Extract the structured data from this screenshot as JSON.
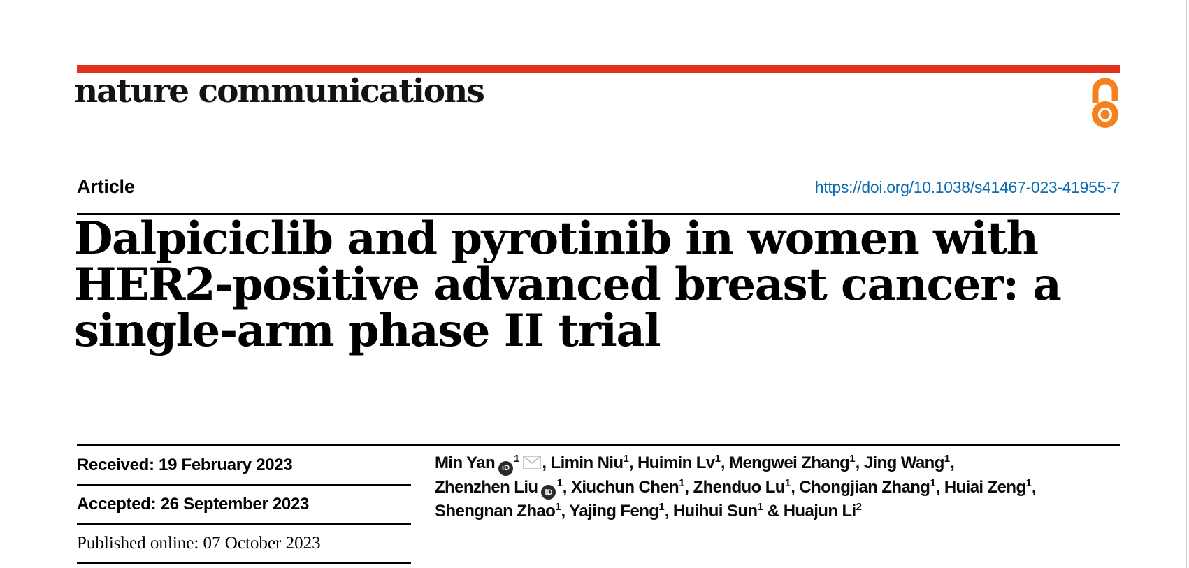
{
  "journal": {
    "name": "nature communications"
  },
  "colors": {
    "masthead_red": "#e0301e",
    "open_access_orange": "#f5821f",
    "doi_blue": "#0f6cb0",
    "rule_black": "#000000",
    "page_edge_gray": "#cccccc",
    "envelope_gray": "#c4c4c4",
    "orcid_badge_dark": "#2a2a2a"
  },
  "icons": {
    "open_access": "open-access-padlock-icon",
    "orcid": "orcid-id-icon",
    "orcid_text": "iD",
    "email": "envelope-icon"
  },
  "article": {
    "type_label": "Article",
    "doi_url": "https://doi.org/10.1038/s41467-023-41955-7",
    "title": "Dalpiciclib and pyrotinib in women with HER2-positive advanced breast cancer: a single-arm phase II trial",
    "title_lines": [
      "Dalpiciclib and pyrotinib in women with",
      "HER2-positive advanced breast cancer: a",
      "single-arm phase II trial"
    ]
  },
  "dates": [
    {
      "key": "received",
      "label": "Received",
      "value": "19 February 2023",
      "font": "sans"
    },
    {
      "key": "accepted",
      "label": "Accepted",
      "value": "26 September 2023",
      "font": "sans"
    },
    {
      "key": "published",
      "label": "Published online",
      "value": "07 October 2023",
      "font": "serif"
    }
  ],
  "authors": {
    "lines": [
      {
        "names": [
          {
            "name": "Min Yan",
            "orcid": true,
            "sup": "1",
            "email": true
          },
          {
            "name": "Limin Niu",
            "sup": "1"
          },
          {
            "name": "Huimin Lv",
            "sup": "1"
          },
          {
            "name": "Mengwei Zhang",
            "sup": "1"
          },
          {
            "name": "Jing Wang",
            "sup": "1"
          }
        ],
        "trailing": ","
      },
      {
        "names": [
          {
            "name": "Zhenzhen Liu",
            "orcid": true,
            "sup": "1"
          },
          {
            "name": "Xiuchun Chen",
            "sup": "1"
          },
          {
            "name": "Zhenduo Lu",
            "sup": "1"
          },
          {
            "name": "Chongjian Zhang",
            "sup": "1"
          },
          {
            "name": "Huiai Zeng",
            "sup": "1"
          }
        ],
        "trailing": ","
      },
      {
        "names": [
          {
            "name": "Shengnan Zhao",
            "sup": "1"
          },
          {
            "name": "Yajing Feng",
            "sup": "1"
          },
          {
            "name": "Huihui Sun",
            "sup": "1",
            "amp_after": true
          },
          {
            "name": "Huajun Li",
            "sup": "2"
          }
        ],
        "trailing": ""
      }
    ]
  }
}
